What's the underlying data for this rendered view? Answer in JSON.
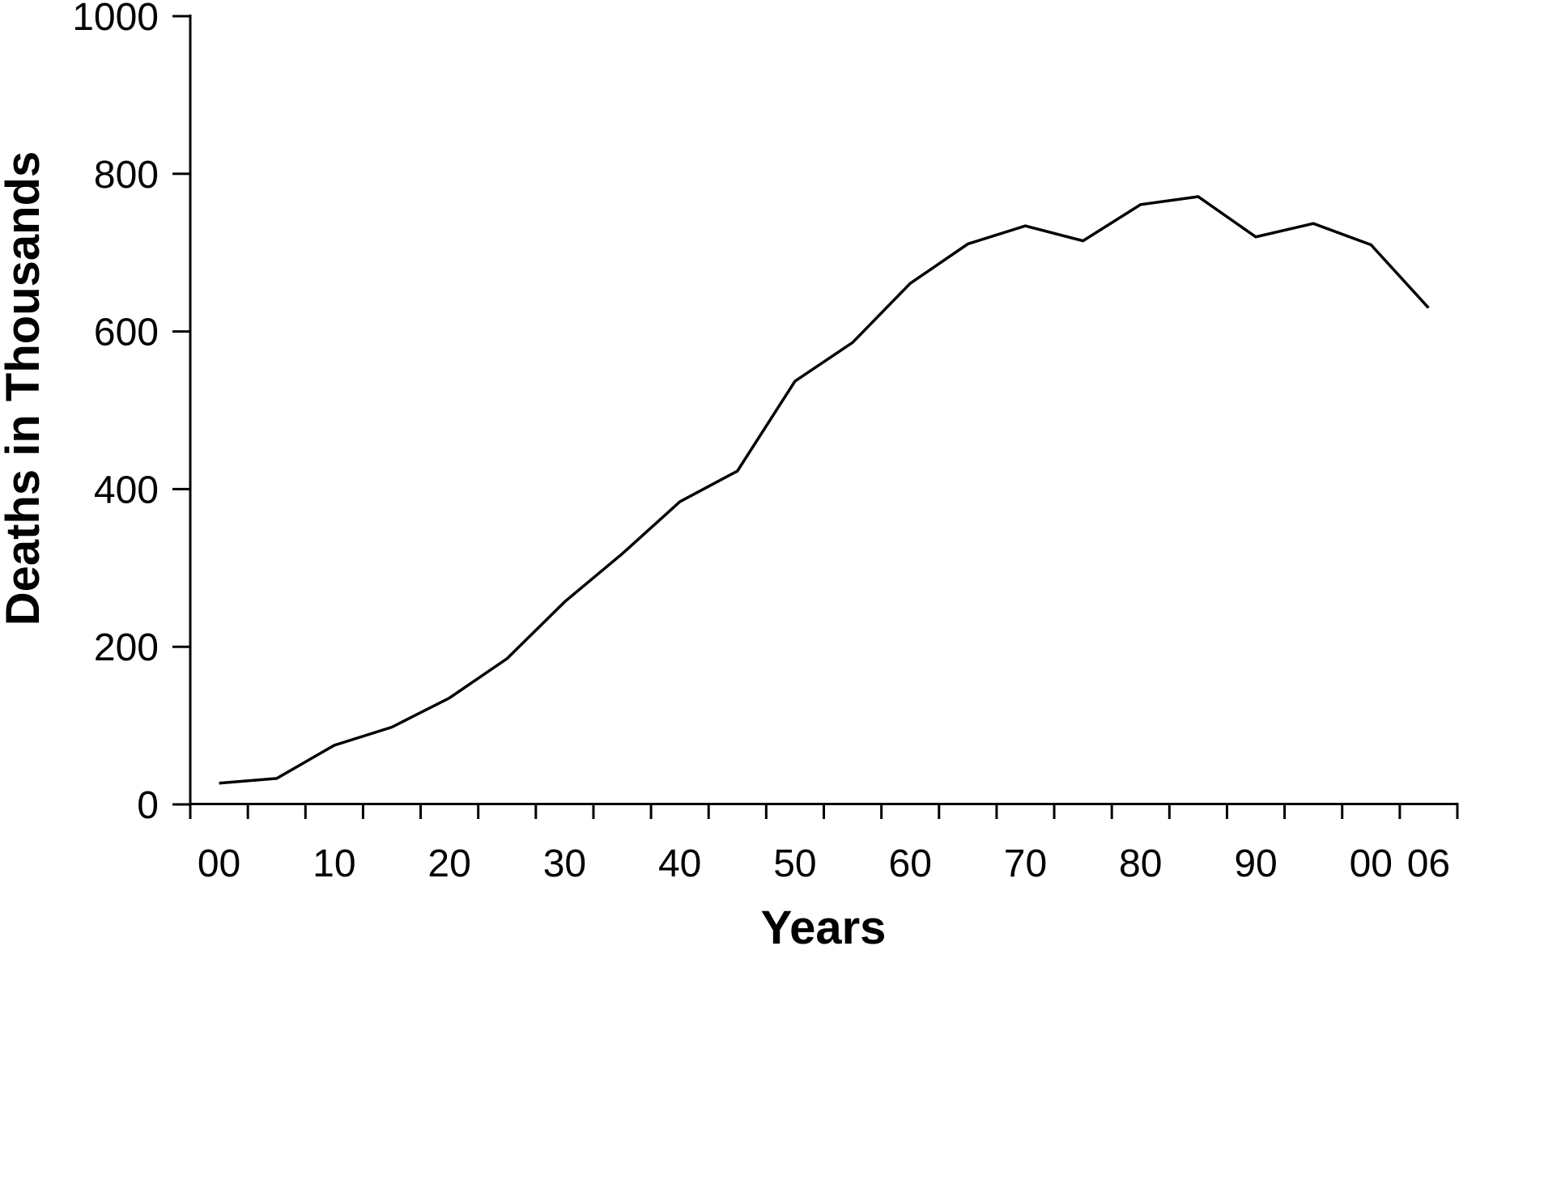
{
  "chart_data": {
    "type": "line",
    "title": "",
    "xlabel": "Years",
    "ylabel": "Deaths in Thousands",
    "categories": [
      "1900",
      "1905",
      "1910",
      "1915",
      "1920",
      "1925",
      "1930",
      "1935",
      "1940",
      "1945",
      "1950",
      "1955",
      "1960",
      "1965",
      "1970",
      "1975",
      "1980",
      "1985",
      "1990",
      "1995",
      "2000",
      "2006"
    ],
    "x_tick_labels": [
      "00",
      "",
      "10",
      "",
      "20",
      "",
      "30",
      "",
      "40",
      "",
      "50",
      "",
      "60",
      "",
      "70",
      "",
      "80",
      "",
      "90",
      "",
      "00",
      "06"
    ],
    "series": [
      {
        "name": "Deaths in Thousands",
        "values": [
          27,
          33,
          75,
          98,
          135,
          185,
          257,
          318,
          384,
          423,
          537,
          586,
          661,
          711,
          734,
          715,
          761,
          771,
          720,
          737,
          710,
          630
        ]
      }
    ],
    "y_ticks": [
      0,
      200,
      400,
      600,
      800,
      1000
    ],
    "y_tick_labels": [
      "0",
      "200",
      "400",
      "600",
      "800",
      "1000"
    ],
    "ylim": [
      0,
      1000
    ],
    "grid": false,
    "legend": "none",
    "line_color": "#000000",
    "background_color": "#ffffff",
    "text_color": "#000000"
  }
}
